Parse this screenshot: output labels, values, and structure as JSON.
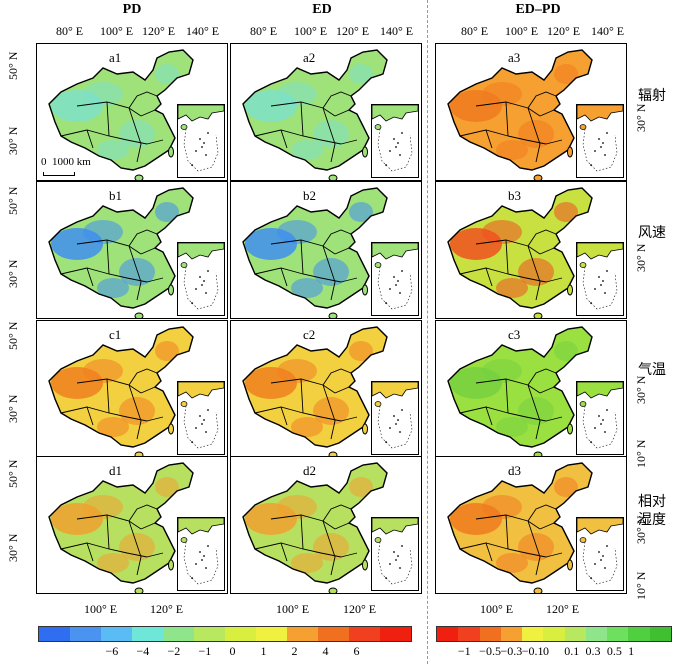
{
  "columns": {
    "pd": "PD",
    "ed": "ED",
    "diff": "ED–PD"
  },
  "top_ticks": [
    "80° E",
    "100° E",
    "120° E",
    "140° E"
  ],
  "bottom_ticks": [
    "100° E",
    "120° E"
  ],
  "lat_ticks": {
    "n50": "50° N",
    "n30": "30° N",
    "n10": "10° N"
  },
  "rows": [
    {
      "id": "a",
      "labels": [
        "a1",
        "a2",
        "a3"
      ],
      "name": "辐射",
      "colors": [
        "#9fe27a",
        "#9fe27a",
        "#f5a030"
      ],
      "accent": [
        "#7ee0c8",
        "#7ee0c8",
        "#f07a20"
      ]
    },
    {
      "id": "b",
      "labels": [
        "b1",
        "b2",
        "b3"
      ],
      "name": "风速",
      "colors": [
        "#9fe27a",
        "#9fe27a",
        "#c8e040"
      ],
      "accent": [
        "#3f8ef0",
        "#3f8ef0",
        "#f05020"
      ]
    },
    {
      "id": "c",
      "labels": [
        "c1",
        "c2",
        "c3"
      ],
      "name": "气温",
      "colors": [
        "#f2d040",
        "#f2d040",
        "#9ae040"
      ],
      "accent": [
        "#f08020",
        "#f08020",
        "#78d040"
      ]
    },
    {
      "id": "d",
      "labels": [
        "d1",
        "d2",
        "d3"
      ],
      "name": "相对湿度",
      "colors": [
        "#b8e060",
        "#b8e060",
        "#f2c040"
      ],
      "accent": [
        "#f0a030",
        "#f0a030",
        "#f07a20"
      ]
    }
  ],
  "scale_bar": {
    "zero": "0",
    "dist": "1000 km"
  },
  "colorbar_left": {
    "colors": [
      "#2f6ef0",
      "#4a93f0",
      "#5bbbf5",
      "#6ee6d8",
      "#8fe58a",
      "#b8e860",
      "#d8ef40",
      "#f0f040",
      "#f5a030",
      "#f07020",
      "#f04020",
      "#f02010"
    ],
    "labels": [
      "−6",
      "−4",
      "−2",
      "−1",
      "0",
      "1",
      "2",
      "4",
      "6"
    ]
  },
  "colorbar_right": {
    "colors": [
      "#f02010",
      "#f04020",
      "#f07020",
      "#f5a030",
      "#f0f040",
      "#d8ef40",
      "#b8e860",
      "#8fe58a",
      "#6ee060",
      "#50d040",
      "#40c030"
    ],
    "labels": [
      "−1",
      "−0.5",
      "−0.3",
      "−0.1",
      "0",
      "0.1",
      "0.3",
      "0.5",
      "1"
    ]
  }
}
